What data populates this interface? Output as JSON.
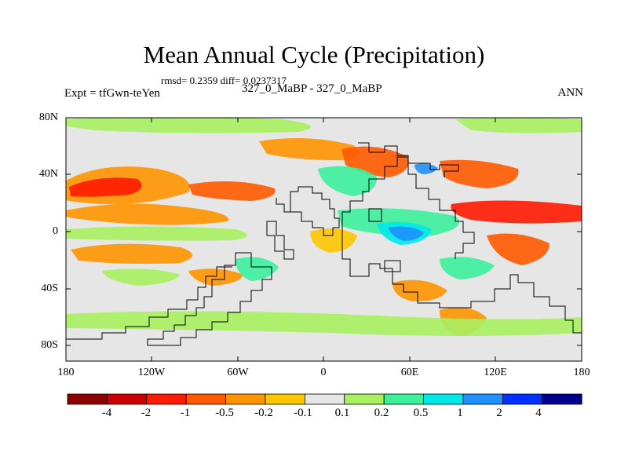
{
  "title": "Mean Annual Cycle (Precipitation)",
  "stats": "rmsd= 0.2359 diff= 0.0237317",
  "experiment": "Expt = tfGwn-teYen",
  "cases": "327_0_MaBP - 327_0_MaBP",
  "season": "ANN",
  "lat_labels": [
    "80N",
    "40N",
    "0",
    "40S",
    "80S"
  ],
  "lon_labels": [
    "180",
    "120W",
    "60W",
    "0",
    "60E",
    "120E",
    "180"
  ],
  "colorbar": {
    "labels": [
      "-4",
      "-2",
      "-1",
      "-0.5",
      "-0.2",
      "-0.1",
      "0.1",
      "0.2",
      "0.5",
      "1",
      "2",
      "4"
    ],
    "colors": [
      "#8c0000",
      "#cc0000",
      "#ff1a00",
      "#ff5a00",
      "#ff9400",
      "#ffc800",
      "#e6e6e6",
      "#a8f060",
      "#3cf09c",
      "#00e8e8",
      "#1e90ff",
      "#0032ff",
      "#00008c"
    ]
  },
  "map": {
    "background_color": "#e6e6e6",
    "anomaly_patches": [
      {
        "name": "n-pacific-band",
        "level": 4
      },
      {
        "name": "ne-pacific-band",
        "level": 2
      },
      {
        "name": "central-pacific-band",
        "level": 4
      },
      {
        "name": "east-pacific-band",
        "level": 3
      },
      {
        "name": "europe-north-band",
        "level": 4
      },
      {
        "name": "asia-band",
        "level": 3
      },
      {
        "name": "west-pacific-band",
        "level": 2
      },
      {
        "name": "south-pacific-band",
        "level": 4
      },
      {
        "name": "south-atlantic-band",
        "level": 5
      },
      {
        "name": "indian-south",
        "level": 4
      },
      {
        "name": "australia-east",
        "level": 3
      },
      {
        "name": "arctic-green",
        "level": 7
      },
      {
        "name": "pacific-green",
        "level": 7
      },
      {
        "name": "equatorial-green",
        "level": 8
      },
      {
        "name": "africa-green",
        "level": 8
      },
      {
        "name": "india-cyan",
        "level": 9
      },
      {
        "name": "indian-ocean-blue",
        "level": 10
      },
      {
        "name": "himalaya-blue",
        "level": 10
      },
      {
        "name": "southern-green",
        "level": 7
      },
      {
        "name": "atlantic-green",
        "level": 8
      }
    ]
  }
}
